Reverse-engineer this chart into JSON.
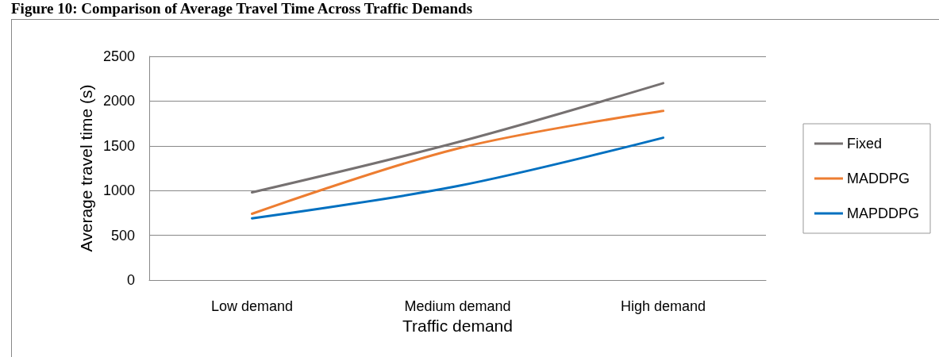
{
  "chart_data": {
    "type": "line",
    "title": "Figure 10: Comparison of Average Travel Time Across Traffic Demands",
    "xlabel": "Traffic demand",
    "ylabel": "Average travel time (s)",
    "categories": [
      "Low demand",
      "Medium demand",
      "High demand"
    ],
    "series": [
      {
        "name": "Fixed",
        "color": "#767171",
        "values": [
          980,
          1540,
          2200
        ]
      },
      {
        "name": "MADDPG",
        "color": "#ed7d31",
        "values": [
          740,
          1470,
          1890
        ]
      },
      {
        "name": "MAPDDPG",
        "color": "#0070c0",
        "values": [
          690,
          1050,
          1590
        ]
      }
    ],
    "ylim": [
      0,
      2500
    ],
    "yticks": [
      0,
      500,
      1000,
      1500,
      2000,
      2500
    ],
    "grid": "y",
    "legend": "right"
  }
}
